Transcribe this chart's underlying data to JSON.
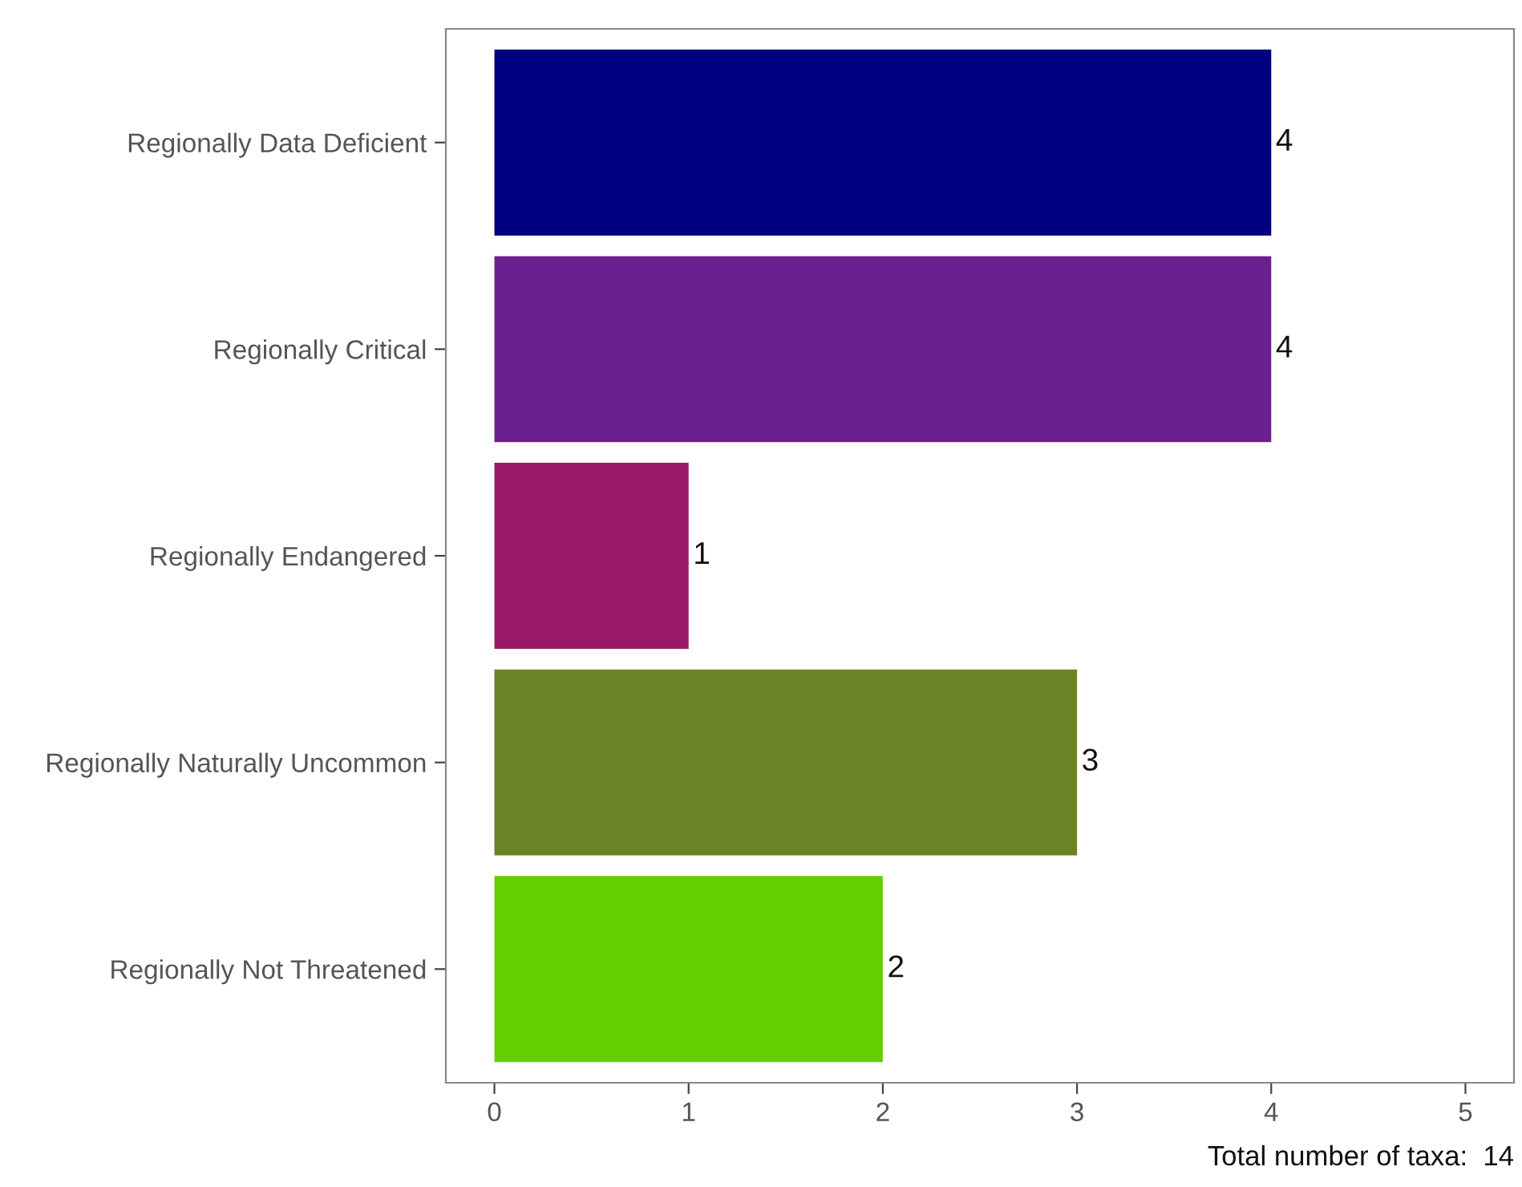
{
  "chart_data": {
    "type": "bar",
    "orientation": "horizontal",
    "categories": [
      "Regionally Data Deficient",
      "Regionally Critical",
      "Regionally Endangered",
      "Regionally Naturally Uncommon",
      "Regionally Not Threatened"
    ],
    "values": [
      4,
      4,
      1,
      3,
      2
    ],
    "colors": [
      "#000080",
      "#6a1f8e",
      "#981a68",
      "#6b8225",
      "#62d000"
    ],
    "xlim": [
      -0.25,
      5.25
    ],
    "xticks": [
      0,
      1,
      2,
      3,
      4,
      5
    ],
    "data_labels": true,
    "grid": false,
    "legend": false,
    "annotations": [
      "Total number of taxa:  14"
    ]
  }
}
